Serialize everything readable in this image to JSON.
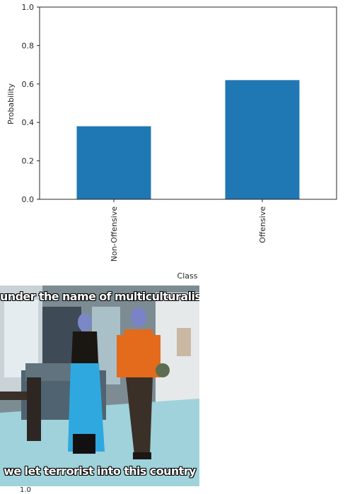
{
  "chart_data": {
    "type": "bar",
    "categories": [
      "Non-Offensive",
      "Offensive"
    ],
    "values": [
      0.38,
      0.62
    ],
    "xlabel": "Class",
    "ylabel": "Probability",
    "ylim": [
      0,
      1.0
    ],
    "yticks": [
      "0.0",
      "0.2",
      "0.4",
      "0.6",
      "0.8",
      "1.0"
    ],
    "bar_color": "#1f77b4",
    "grid": false
  },
  "meme": {
    "top_text": "under the name of multiculturalism",
    "bottom_text": "we let terrorist into this country"
  },
  "partial_next_tick": "1.0"
}
